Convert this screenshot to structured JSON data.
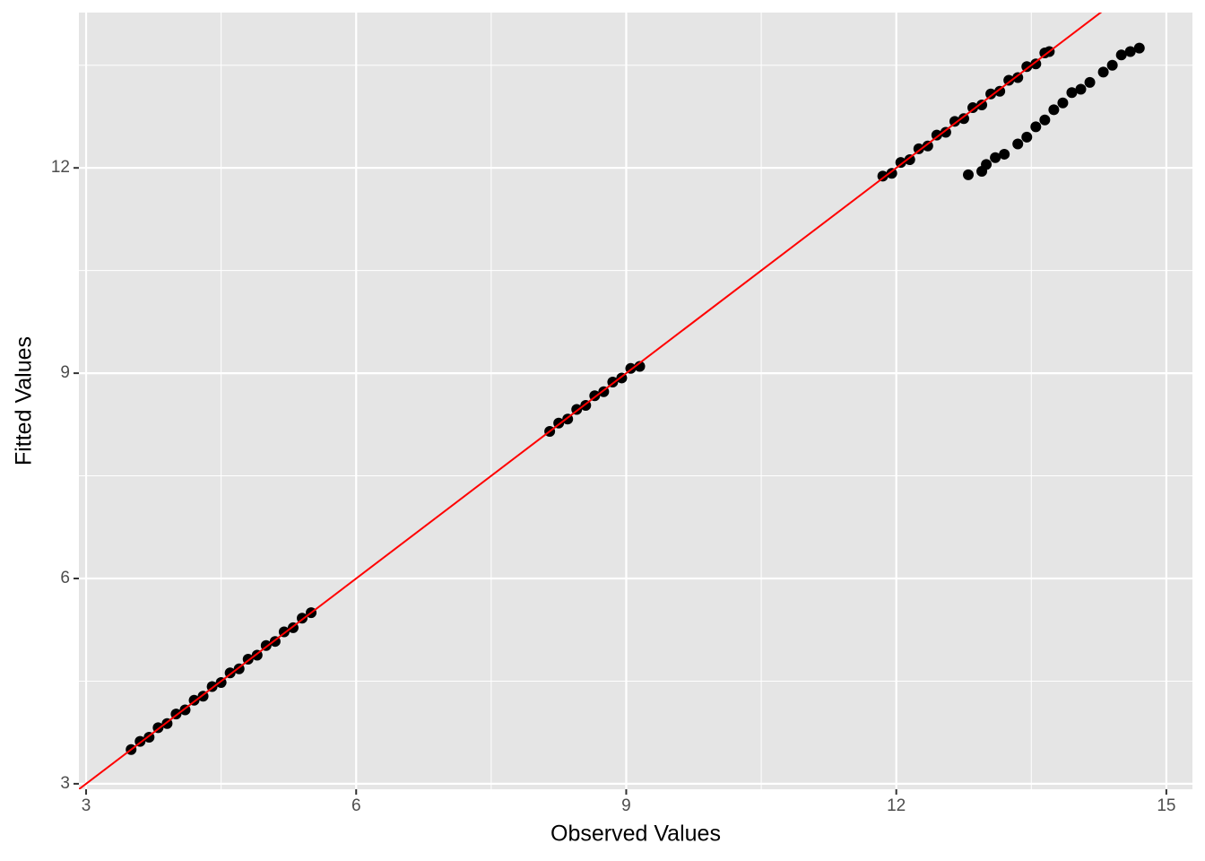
{
  "chart_data": {
    "type": "scatter",
    "x_label": "Observed Values",
    "y_label": "Fitted Values",
    "xlim": [
      2.92,
      15.29
    ],
    "ylim": [
      2.92,
      14.27
    ],
    "xticks": [
      3,
      6,
      9,
      12,
      15
    ],
    "yticks": [
      3,
      6,
      9,
      12
    ],
    "xminor": [
      4.5,
      7.5,
      10.5,
      13.5
    ],
    "yminor": [
      4.5,
      7.5,
      10.5,
      13.5
    ],
    "grid": true,
    "panel_color": "#e5e5e5",
    "abline": {
      "intercept": 0,
      "slope": 1,
      "color": "#ff0000"
    },
    "series": [
      {
        "color": "#000000",
        "x": [
          3.5,
          3.6,
          3.7,
          3.8,
          3.9,
          4.0,
          4.1,
          4.2,
          4.3,
          4.4,
          4.5,
          4.6,
          4.7,
          4.8,
          4.9,
          5.0,
          5.1,
          5.2,
          5.3,
          5.4,
          5.5,
          8.15,
          8.25,
          8.35,
          8.45,
          8.55,
          8.65,
          8.75,
          8.85,
          8.95,
          9.05,
          9.15,
          11.85,
          11.95,
          12.05,
          12.15,
          12.25,
          12.35,
          12.45,
          12.55,
          12.65,
          12.75,
          12.85,
          12.95,
          13.05,
          13.15,
          13.25,
          13.35,
          13.45,
          13.55,
          13.65,
          13.7,
          12.8,
          12.95,
          13.0,
          13.1,
          13.2,
          13.35,
          13.45,
          13.55,
          13.65,
          13.75,
          13.85,
          13.95,
          14.05,
          14.15,
          14.3,
          14.4,
          14.5,
          14.6,
          14.7
        ],
        "y": [
          3.5,
          3.62,
          3.68,
          3.82,
          3.88,
          4.02,
          4.08,
          4.22,
          4.28,
          4.42,
          4.48,
          4.62,
          4.68,
          4.82,
          4.88,
          5.02,
          5.08,
          5.22,
          5.28,
          5.42,
          5.5,
          8.15,
          8.27,
          8.33,
          8.47,
          8.53,
          8.67,
          8.73,
          8.87,
          8.93,
          9.07,
          9.1,
          11.88,
          11.92,
          12.08,
          12.12,
          12.28,
          12.32,
          12.48,
          12.52,
          12.68,
          12.72,
          12.88,
          12.92,
          13.08,
          13.12,
          13.28,
          13.32,
          13.48,
          13.52,
          13.68,
          13.7,
          11.9,
          11.95,
          12.05,
          12.15,
          12.2,
          12.35,
          12.45,
          12.6,
          12.7,
          12.85,
          12.95,
          13.1,
          13.15,
          13.25,
          13.4,
          13.5,
          13.65,
          13.7,
          13.75
        ]
      }
    ]
  }
}
